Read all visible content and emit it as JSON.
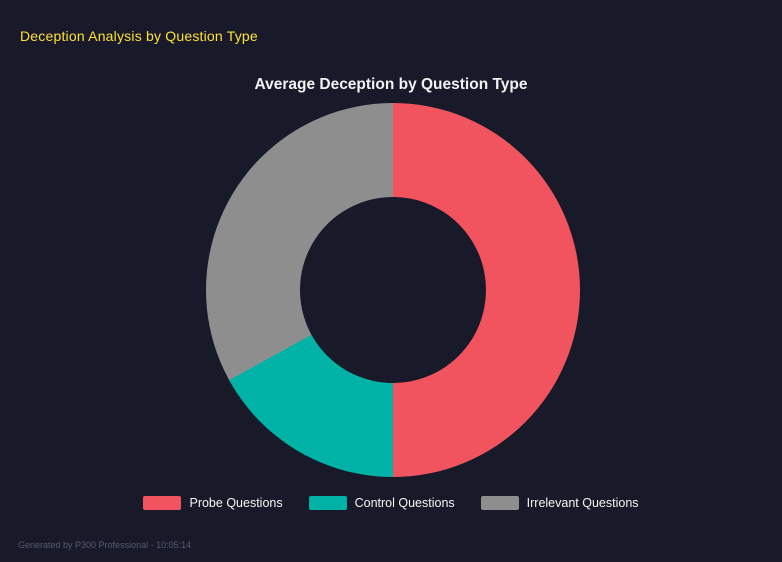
{
  "header": {
    "title": "Deception Analysis by Question Type",
    "accent_color": "#ffe135"
  },
  "footer": {
    "text": "Generated by P300 Professional - 10:05:14"
  },
  "chart_data": {
    "type": "pie",
    "subtype": "donut",
    "title": "Average Deception by Question Type",
    "categories": [
      "Probe Questions",
      "Control Questions",
      "Irrelevant Questions"
    ],
    "values": [
      50,
      17,
      33
    ],
    "colors": [
      "#f2545f",
      "#00b3a6",
      "#8e8e8e"
    ],
    "legend_position": "bottom",
    "start_angle_deg": 0,
    "direction": "clockwise",
    "inner_radius_ratio": 0.5,
    "background_color": "#181929"
  }
}
